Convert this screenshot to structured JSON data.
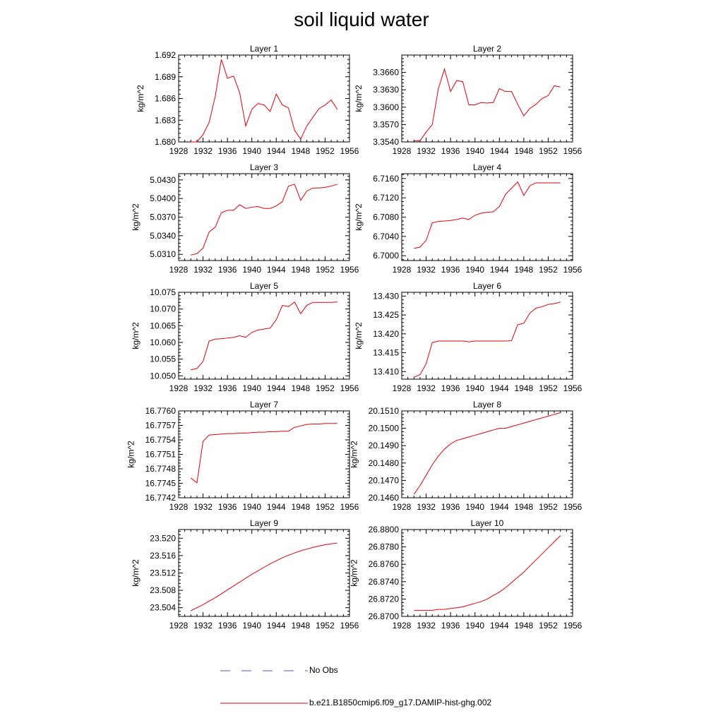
{
  "figure": {
    "title": "soil liquid water"
  },
  "legend": [
    {
      "label": "No Obs",
      "color": "#4a55c8",
      "dashed": true
    },
    {
      "label": "b.e21.B1850cmip6.f09_g17.DAMIP-hist-ghg.002",
      "color": "#e8000b",
      "dashed": false
    }
  ],
  "chart_data": [
    {
      "type": "line",
      "title": "Layer 1",
      "ylabel": "kg/m^2",
      "xlim": [
        1928,
        1956
      ],
      "ylim": [
        1.68,
        1.692
      ],
      "xticks": [
        "1928",
        "1932",
        "1936",
        "1940",
        "1944",
        "1948",
        "1952",
        "1956"
      ],
      "yticks": [
        "1.680",
        "1.683",
        "1.686",
        "1.689",
        "1.692"
      ],
      "series": [
        {
          "color": "#e8000b",
          "x": [
            1930,
            1931,
            1932,
            1933,
            1934,
            1935,
            1936,
            1937,
            1938,
            1939,
            1940,
            1941,
            1942,
            1943,
            1944,
            1945,
            1946,
            1947,
            1948,
            1949,
            1950,
            1951,
            1952,
            1953,
            1954
          ],
          "y": [
            1.68,
            1.68,
            1.681,
            1.6827,
            1.6863,
            1.6914,
            1.6888,
            1.6891,
            1.6868,
            1.6822,
            1.6845,
            1.6853,
            1.6851,
            1.6842,
            1.6866,
            1.6851,
            1.6847,
            1.6816,
            1.6804,
            1.6822,
            1.6834,
            1.6846,
            1.6851,
            1.6858,
            1.6845
          ]
        }
      ]
    },
    {
      "type": "line",
      "title": "Layer 2",
      "ylabel": "kg/m^2",
      "xlim": [
        1928,
        1956
      ],
      "ylim": [
        3.354,
        3.369
      ],
      "xticks": [
        "1928",
        "1932",
        "1936",
        "1940",
        "1944",
        "1948",
        "1952",
        "1956"
      ],
      "yticks": [
        "3.3540",
        "3.3570",
        "3.3600",
        "3.3630",
        "3.3660"
      ],
      "series": [
        {
          "color": "#e8000b",
          "x": [
            1930,
            1931,
            1932,
            1933,
            1934,
            1935,
            1936,
            1937,
            1938,
            1939,
            1940,
            1941,
            1942,
            1943,
            1944,
            1945,
            1946,
            1947,
            1948,
            1949,
            1950,
            1951,
            1952,
            1953,
            1954
          ],
          "y": [
            3.3542,
            3.3542,
            3.3557,
            3.357,
            3.3632,
            3.3666,
            3.3627,
            3.3646,
            3.3644,
            3.3604,
            3.3604,
            3.3608,
            3.3607,
            3.3608,
            3.3632,
            3.3627,
            3.3627,
            3.3605,
            3.3585,
            3.3598,
            3.3605,
            3.3615,
            3.362,
            3.3637,
            3.3635
          ]
        }
      ]
    },
    {
      "type": "line",
      "title": "Layer 3",
      "ylabel": "kg/m^2",
      "xlim": [
        1928,
        1956
      ],
      "ylim": [
        5.03,
        5.044
      ],
      "xticks": [
        "1928",
        "1932",
        "1936",
        "1940",
        "1944",
        "1948",
        "1952",
        "1956"
      ],
      "yticks": [
        "5.0310",
        "5.0340",
        "5.0370",
        "5.0400",
        "5.0430"
      ],
      "series": [
        {
          "color": "#e8000b",
          "x": [
            1930,
            1931,
            1932,
            1933,
            1934,
            1935,
            1936,
            1937,
            1938,
            1939,
            1940,
            1941,
            1942,
            1943,
            1944,
            1945,
            1946,
            1947,
            1948,
            1949,
            1950,
            1951,
            1952,
            1953,
            1954
          ],
          "y": [
            5.0309,
            5.0311,
            5.032,
            5.0346,
            5.0354,
            5.0377,
            5.0381,
            5.0381,
            5.039,
            5.0384,
            5.0386,
            5.0387,
            5.0384,
            5.0384,
            5.0388,
            5.0395,
            5.042,
            5.0423,
            5.0397,
            5.0412,
            5.0417,
            5.0417,
            5.0418,
            5.042,
            5.0423
          ]
        }
      ]
    },
    {
      "type": "line",
      "title": "Layer 4",
      "ylabel": "kg/m^2",
      "xlim": [
        1928,
        1956
      ],
      "ylim": [
        6.699,
        6.717
      ],
      "xticks": [
        "1928",
        "1932",
        "1936",
        "1940",
        "1944",
        "1948",
        "1952",
        "1956"
      ],
      "yticks": [
        "6.7000",
        "6.7040",
        "6.7080",
        "6.7120",
        "6.7160"
      ],
      "series": [
        {
          "color": "#e8000b",
          "x": [
            1930,
            1931,
            1932,
            1933,
            1934,
            1935,
            1936,
            1937,
            1938,
            1939,
            1940,
            1941,
            1942,
            1943,
            1944,
            1945,
            1946,
            1947,
            1948,
            1949,
            1950,
            1951,
            1952,
            1953,
            1954
          ],
          "y": [
            6.7015,
            6.7018,
            6.7032,
            6.7068,
            6.7071,
            6.7072,
            6.7073,
            6.7075,
            6.7078,
            6.7075,
            6.7084,
            6.7088,
            6.709,
            6.7091,
            6.7102,
            6.7127,
            6.714,
            6.7153,
            6.7125,
            6.7145,
            6.7151,
            6.7151,
            6.7151,
            6.7151,
            6.7151
          ]
        }
      ]
    },
    {
      "type": "line",
      "title": "Layer 5",
      "ylabel": "kg/m^2",
      "xlim": [
        1928,
        1956
      ],
      "ylim": [
        10.049,
        10.075
      ],
      "xticks": [
        "1928",
        "1932",
        "1936",
        "1940",
        "1944",
        "1948",
        "1952",
        "1956"
      ],
      "yticks": [
        "10.050",
        "10.055",
        "10.060",
        "10.065",
        "10.070",
        "10.075"
      ],
      "series": [
        {
          "color": "#e8000b",
          "x": [
            1930,
            1931,
            1932,
            1933,
            1934,
            1935,
            1936,
            1937,
            1938,
            1939,
            1940,
            1941,
            1942,
            1943,
            1944,
            1945,
            1946,
            1947,
            1948,
            1949,
            1950,
            1951,
            1952,
            1953,
            1954
          ],
          "y": [
            10.0518,
            10.0522,
            10.0543,
            10.0604,
            10.061,
            10.0611,
            10.0613,
            10.0615,
            10.062,
            10.0615,
            10.063,
            10.0637,
            10.064,
            10.0643,
            10.0668,
            10.0711,
            10.0707,
            10.0721,
            10.0686,
            10.0711,
            10.072,
            10.072,
            10.072,
            10.072,
            10.0721
          ]
        }
      ]
    },
    {
      "type": "line",
      "title": "Layer 6",
      "ylabel": "kg/m^2",
      "xlim": [
        1928,
        1956
      ],
      "ylim": [
        13.408,
        13.431
      ],
      "xticks": [
        "1928",
        "1932",
        "1936",
        "1940",
        "1944",
        "1948",
        "1952",
        "1956"
      ],
      "yticks": [
        "13.410",
        "13.415",
        "13.420",
        "13.425",
        "13.430"
      ],
      "series": [
        {
          "color": "#e8000b",
          "x": [
            1930,
            1931,
            1932,
            1933,
            1934,
            1935,
            1936,
            1937,
            1938,
            1939,
            1940,
            1941,
            1942,
            1943,
            1944,
            1945,
            1946,
            1947,
            1948,
            1949,
            1950,
            1951,
            1952,
            1953,
            1954
          ],
          "y": [
            13.4085,
            13.4092,
            13.4121,
            13.4177,
            13.4181,
            13.4181,
            13.4181,
            13.4181,
            13.4181,
            13.4179,
            13.4181,
            13.4181,
            13.4181,
            13.4181,
            13.4181,
            13.4181,
            13.4182,
            13.4224,
            13.4228,
            13.4255,
            13.4268,
            13.4272,
            13.4278,
            13.428,
            13.4284
          ]
        }
      ]
    },
    {
      "type": "line",
      "title": "Layer 7",
      "ylabel": "kg/m^2",
      "xlim": [
        1928,
        1956
      ],
      "ylim": [
        16.7742,
        16.776
      ],
      "xticks": [
        "1928",
        "1932",
        "1936",
        "1940",
        "1944",
        "1948",
        "1952",
        "1956"
      ],
      "yticks": [
        "16.7742",
        "16.7745",
        "16.7748",
        "16.7751",
        "16.7754",
        "16.7757",
        "16.7760"
      ],
      "series": [
        {
          "color": "#e8000b",
          "x": [
            1930,
            1931,
            1932,
            1933,
            1934,
            1935,
            1936,
            1937,
            1938,
            1939,
            1940,
            1941,
            1942,
            1943,
            1944,
            1945,
            1946,
            1947,
            1948,
            1949,
            1950,
            1951,
            1952,
            1953,
            1954
          ],
          "y": [
            16.77461,
            16.77451,
            16.77537,
            16.7755,
            16.77551,
            16.77552,
            16.77553,
            16.77553,
            16.77554,
            16.77554,
            16.77555,
            16.77556,
            16.77556,
            16.77557,
            16.77557,
            16.77558,
            16.77558,
            16.77566,
            16.77569,
            16.77572,
            16.77573,
            16.77573,
            16.77574,
            16.77574,
            16.77574
          ]
        }
      ]
    },
    {
      "type": "line",
      "title": "Layer 8",
      "ylabel": "kg/m^2",
      "xlim": [
        1928,
        1956
      ],
      "ylim": [
        20.146,
        20.151
      ],
      "xticks": [
        "1928",
        "1932",
        "1936",
        "1940",
        "1944",
        "1948",
        "1952",
        "1956"
      ],
      "yticks": [
        "20.1460",
        "20.1470",
        "20.1480",
        "20.1490",
        "20.1500",
        "20.1510"
      ],
      "series": [
        {
          "color": "#e8000b",
          "x": [
            1930,
            1931,
            1932,
            1933,
            1934,
            1935,
            1936,
            1937,
            1938,
            1939,
            1940,
            1941,
            1942,
            1943,
            1944,
            1945,
            1946,
            1947,
            1948,
            1949,
            1950,
            1951,
            1952,
            1953,
            1954
          ],
          "y": [
            20.1462,
            20.1467,
            20.1473,
            20.1479,
            20.1484,
            20.1488,
            20.1491,
            20.1493,
            20.1494,
            20.1495,
            20.1496,
            20.1497,
            20.1498,
            20.1499,
            20.15,
            20.15,
            20.1501,
            20.1502,
            20.1503,
            20.1504,
            20.1505,
            20.1506,
            20.1507,
            20.1508,
            20.1509
          ]
        }
      ]
    },
    {
      "type": "line",
      "title": "Layer 9",
      "ylabel": "kg/m^2",
      "xlim": [
        1928,
        1956
      ],
      "ylim": [
        23.502,
        23.522
      ],
      "xticks": [
        "1928",
        "1932",
        "1936",
        "1940",
        "1944",
        "1948",
        "1952",
        "1956"
      ],
      "yticks": [
        "23.504",
        "23.508",
        "23.512",
        "23.516",
        "23.520"
      ],
      "series": [
        {
          "color": "#e8000b",
          "x": [
            1930,
            1931,
            1932,
            1933,
            1934,
            1935,
            1936,
            1937,
            1938,
            1939,
            1940,
            1941,
            1942,
            1943,
            1944,
            1945,
            1946,
            1947,
            1948,
            1949,
            1950,
            1951,
            1952,
            1953,
            1954
          ],
          "y": [
            23.5033,
            23.504,
            23.5047,
            23.5055,
            23.5063,
            23.5072,
            23.5081,
            23.509,
            23.5099,
            23.5108,
            23.5117,
            23.5125,
            23.5133,
            23.5141,
            23.5148,
            23.5155,
            23.5161,
            23.5166,
            23.5171,
            23.5175,
            23.5179,
            23.5182,
            23.5185,
            23.5187,
            23.5189
          ]
        }
      ]
    },
    {
      "type": "line",
      "title": "Layer 10",
      "ylabel": "kg/m^2",
      "xlim": [
        1928,
        1956
      ],
      "ylim": [
        26.87,
        26.88
      ],
      "xticks": [
        "1928",
        "1932",
        "1936",
        "1940",
        "1944",
        "1948",
        "1952",
        "1956"
      ],
      "yticks": [
        "26.8700",
        "26.8720",
        "26.8740",
        "26.8760",
        "26.8780",
        "26.8800"
      ],
      "series": [
        {
          "color": "#e8000b",
          "x": [
            1930,
            1931,
            1932,
            1933,
            1934,
            1935,
            1936,
            1937,
            1938,
            1939,
            1940,
            1941,
            1942,
            1943,
            1944,
            1945,
            1946,
            1947,
            1948,
            1949,
            1950,
            1951,
            1952,
            1953,
            1954
          ],
          "y": [
            26.8707,
            26.8707,
            26.8707,
            26.8707,
            26.8708,
            26.8708,
            26.8709,
            26.871,
            26.8711,
            26.8713,
            26.8715,
            26.8717,
            26.872,
            26.8724,
            26.8728,
            26.8733,
            26.8739,
            26.8745,
            26.8751,
            26.8758,
            26.8765,
            26.8772,
            26.8779,
            26.8786,
            26.8793
          ]
        }
      ]
    }
  ]
}
